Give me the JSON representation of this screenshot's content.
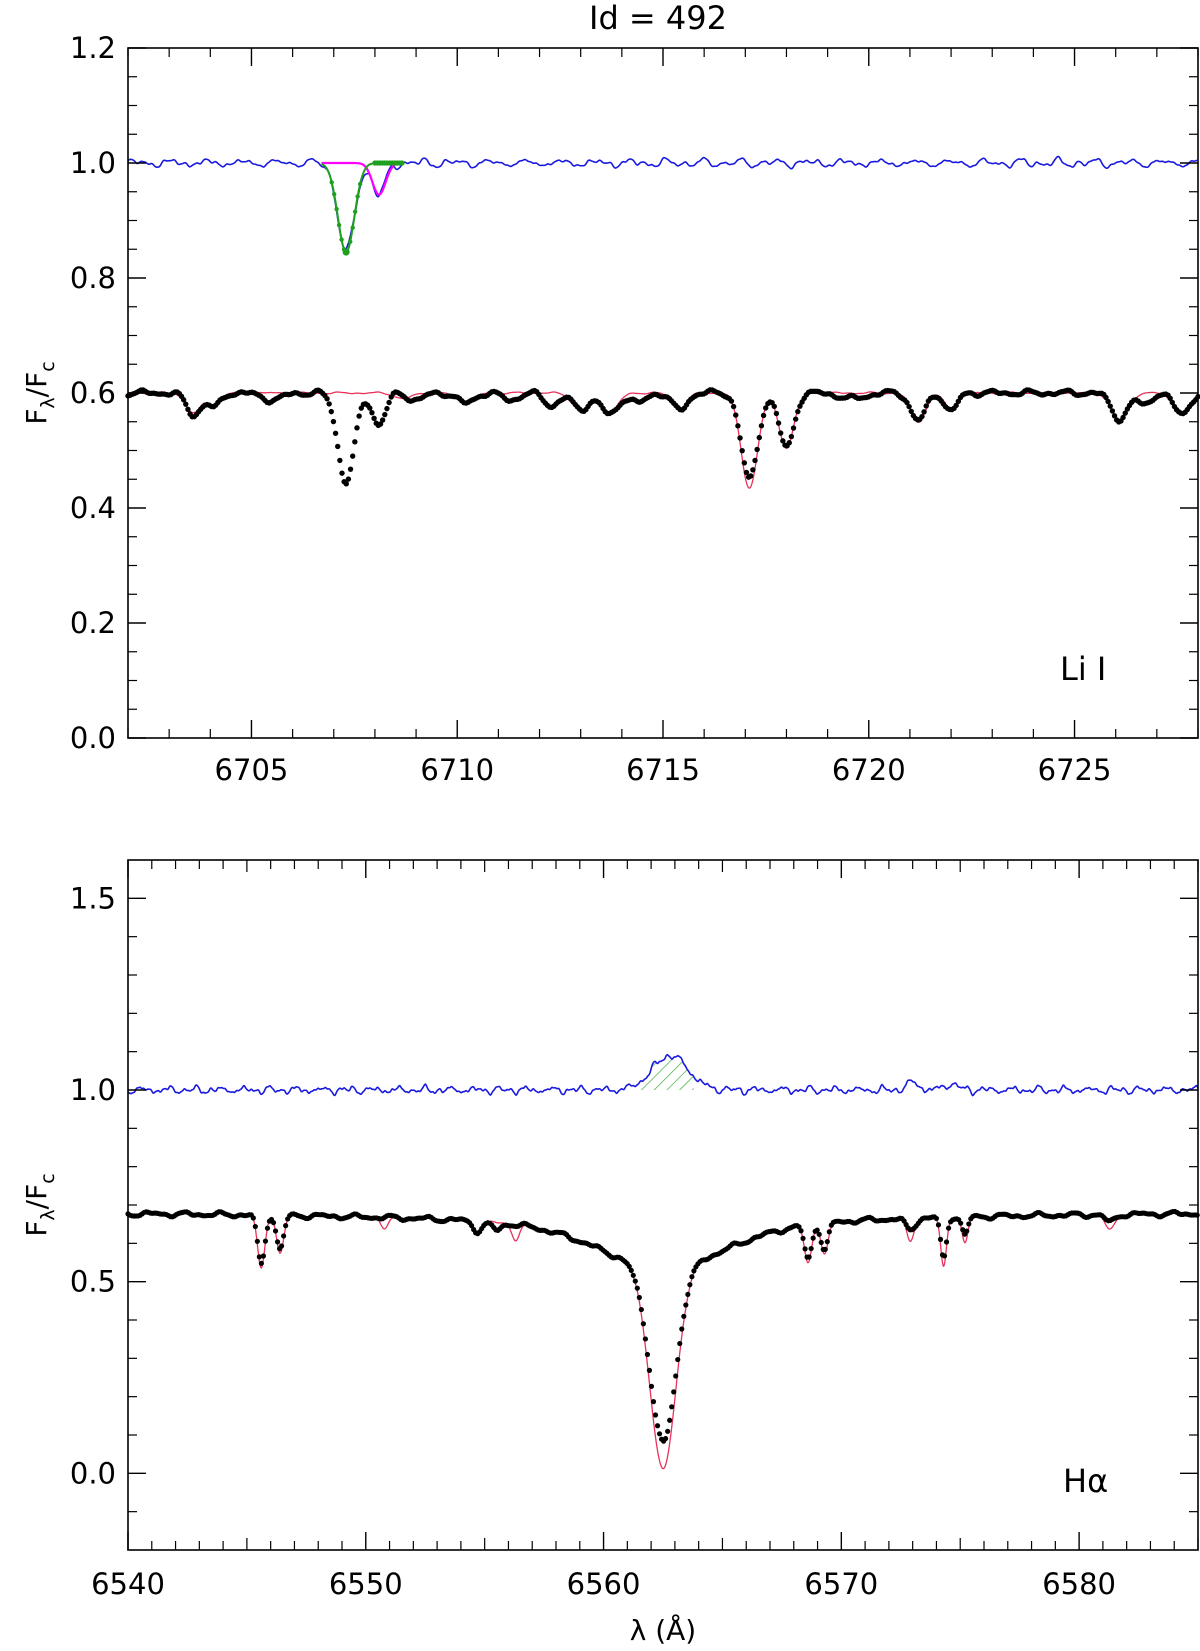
{
  "title": "Id = 492",
  "chart_data": [
    {
      "type": "line",
      "panel": "top",
      "annotation": "Li I",
      "ylabel_main": "F",
      "ylabel_sub_num": "λ",
      "ylabel_sub_den": "c",
      "xlim": [
        6702.0,
        6728.0
      ],
      "ylim": [
        0.0,
        1.2
      ],
      "xticks": [
        6705,
        6710,
        6715,
        6720,
        6725
      ],
      "xtick_labels": [
        "6705",
        "6710",
        "6715",
        "6720",
        "6725"
      ],
      "yticks": [
        0.0,
        0.2,
        0.4,
        0.6,
        0.8,
        1.0,
        1.2
      ],
      "ytick_labels": [
        "0.0",
        "0.2",
        "0.4",
        "0.6",
        "0.8",
        "1.0",
        "1.2"
      ],
      "continuum_observed": 0.6,
      "continuum_subtracted": 1.0,
      "observed_lines": [
        {
          "center": 6703.6,
          "depth": 0.038,
          "sigma": 0.18
        },
        {
          "center": 6704.1,
          "depth": 0.025,
          "sigma": 0.15
        },
        {
          "center": 6705.5,
          "depth": 0.012,
          "sigma": 0.25
        },
        {
          "center": 6707.3,
          "depth": 0.155,
          "sigma": 0.2
        },
        {
          "center": 6708.1,
          "depth": 0.055,
          "sigma": 0.16
        },
        {
          "center": 6709.0,
          "depth": 0.012,
          "sigma": 0.2
        },
        {
          "center": 6710.2,
          "depth": 0.018,
          "sigma": 0.2
        },
        {
          "center": 6711.3,
          "depth": 0.012,
          "sigma": 0.2
        },
        {
          "center": 6712.3,
          "depth": 0.022,
          "sigma": 0.18
        },
        {
          "center": 6713.0,
          "depth": 0.028,
          "sigma": 0.2
        },
        {
          "center": 6713.7,
          "depth": 0.038,
          "sigma": 0.2
        },
        {
          "center": 6714.4,
          "depth": 0.018,
          "sigma": 0.18
        },
        {
          "center": 6715.4,
          "depth": 0.03,
          "sigma": 0.18
        },
        {
          "center": 6717.1,
          "depth": 0.15,
          "sigma": 0.2
        },
        {
          "center": 6718.0,
          "depth": 0.095,
          "sigma": 0.18
        },
        {
          "center": 6719.6,
          "depth": 0.01,
          "sigma": 0.3
        },
        {
          "center": 6721.2,
          "depth": 0.048,
          "sigma": 0.18
        },
        {
          "center": 6722.0,
          "depth": 0.032,
          "sigma": 0.15
        },
        {
          "center": 6726.1,
          "depth": 0.045,
          "sigma": 0.2
        },
        {
          "center": 6726.7,
          "depth": 0.02,
          "sigma": 0.15
        },
        {
          "center": 6727.6,
          "depth": 0.035,
          "sigma": 0.2
        }
      ],
      "template_lines": [
        {
          "center": 6703.6,
          "depth": 0.035,
          "sigma": 0.18
        },
        {
          "center": 6704.1,
          "depth": 0.022,
          "sigma": 0.15
        },
        {
          "center": 6708.7,
          "depth": 0.01,
          "sigma": 0.2
        },
        {
          "center": 6710.2,
          "depth": 0.018,
          "sigma": 0.2
        },
        {
          "center": 6713.0,
          "depth": 0.03,
          "sigma": 0.2
        },
        {
          "center": 6713.7,
          "depth": 0.035,
          "sigma": 0.2
        },
        {
          "center": 6715.4,
          "depth": 0.028,
          "sigma": 0.18
        },
        {
          "center": 6717.1,
          "depth": 0.165,
          "sigma": 0.2
        },
        {
          "center": 6718.0,
          "depth": 0.095,
          "sigma": 0.18
        },
        {
          "center": 6721.2,
          "depth": 0.05,
          "sigma": 0.18
        },
        {
          "center": 6722.0,
          "depth": 0.03,
          "sigma": 0.15
        },
        {
          "center": 6726.1,
          "depth": 0.048,
          "sigma": 0.2
        },
        {
          "center": 6727.6,
          "depth": 0.035,
          "sigma": 0.2
        }
      ],
      "li_fit": {
        "center": 6707.3,
        "depth": 0.155,
        "sigma": 0.2,
        "range": [
          6706.7,
          6708.7
        ]
      },
      "fe_fit": {
        "center": 6708.1,
        "depth": 0.055,
        "sigma": 0.16,
        "range": [
          6706.7,
          6708.7
        ]
      },
      "colors": {
        "observed": "#000000",
        "template": "#e8325a",
        "subtracted": "#1a1adf",
        "fit": "#1fa01f",
        "blend": "#ff00ff"
      }
    },
    {
      "type": "line",
      "panel": "bottom",
      "annotation": "Hα",
      "ylabel_main": "F",
      "ylabel_sub_num": "λ",
      "ylabel_sub_den": "c",
      "xlabel": "λ (Å)",
      "xlim": [
        6540.0,
        6585.0
      ],
      "ylim": [
        -0.2,
        1.6
      ],
      "xticks": [
        6540,
        6550,
        6560,
        6570,
        6580
      ],
      "xtick_labels": [
        "6540",
        "6550",
        "6560",
        "6570",
        "6580"
      ],
      "yticks": [
        0.0,
        0.5,
        1.0,
        1.5
      ],
      "ytick_labels": [
        "0.0",
        "0.5",
        "1.0",
        "1.5"
      ],
      "continuum_observed": 0.68,
      "continuum_subtracted": 1.0,
      "halpha_center": 6562.5,
      "observed_core_depth": 0.45,
      "template_core_depth": 0.54,
      "emission_fill": {
        "range": [
          6561.5,
          6563.8
        ],
        "peak": 0.09,
        "center": 6562.8
      },
      "observed_lines": [
        {
          "center": 6545.6,
          "depth": 0.13,
          "sigma": 0.15
        },
        {
          "center": 6546.4,
          "depth": 0.09,
          "sigma": 0.15
        },
        {
          "center": 6554.7,
          "depth": 0.025,
          "sigma": 0.2
        },
        {
          "center": 6555.5,
          "depth": 0.02,
          "sigma": 0.2
        },
        {
          "center": 6568.6,
          "depth": 0.09,
          "sigma": 0.15
        },
        {
          "center": 6569.3,
          "depth": 0.07,
          "sigma": 0.15
        },
        {
          "center": 6572.9,
          "depth": 0.03,
          "sigma": 0.2
        },
        {
          "center": 6574.3,
          "depth": 0.11,
          "sigma": 0.12
        },
        {
          "center": 6575.2,
          "depth": 0.05,
          "sigma": 0.12
        },
        {
          "center": 6581.3,
          "depth": 0.02,
          "sigma": 0.2
        }
      ],
      "template_lines": [
        {
          "center": 6545.6,
          "depth": 0.14,
          "sigma": 0.15
        },
        {
          "center": 6546.4,
          "depth": 0.1,
          "sigma": 0.15
        },
        {
          "center": 6550.8,
          "depth": 0.03,
          "sigma": 0.15
        },
        {
          "center": 6554.7,
          "depth": 0.03,
          "sigma": 0.2
        },
        {
          "center": 6556.3,
          "depth": 0.04,
          "sigma": 0.15
        },
        {
          "center": 6568.6,
          "depth": 0.1,
          "sigma": 0.15
        },
        {
          "center": 6569.3,
          "depth": 0.08,
          "sigma": 0.15
        },
        {
          "center": 6572.9,
          "depth": 0.06,
          "sigma": 0.15
        },
        {
          "center": 6574.3,
          "depth": 0.13,
          "sigma": 0.12
        },
        {
          "center": 6575.2,
          "depth": 0.07,
          "sigma": 0.12
        },
        {
          "center": 6581.3,
          "depth": 0.04,
          "sigma": 0.2
        }
      ],
      "colors": {
        "observed": "#000000",
        "template": "#e8325a",
        "subtracted": "#1a1adf",
        "fill": "#1fa01f"
      }
    }
  ]
}
